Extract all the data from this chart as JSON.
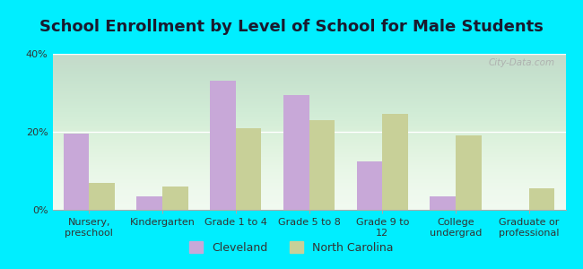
{
  "title": "School Enrollment by Level of School for Male Students",
  "categories": [
    "Nursery,\npreschool",
    "Kindergarten",
    "Grade 1 to 4",
    "Grade 5 to 8",
    "Grade 9 to\n12",
    "College\nundergrad",
    "Graduate or\nprofessional"
  ],
  "cleveland_values": [
    19.5,
    3.5,
    33.0,
    29.5,
    12.5,
    3.5,
    0
  ],
  "nc_values": [
    7.0,
    6.0,
    21.0,
    23.0,
    24.5,
    19.0,
    5.5
  ],
  "cleveland_color": "#c8a8d8",
  "nc_color": "#c8d098",
  "background_color": "#00eeff",
  "ylim": [
    0,
    40
  ],
  "yticks": [
    0,
    20,
    40
  ],
  "ytick_labels": [
    "0%",
    "20%",
    "40%"
  ],
  "bar_width": 0.35,
  "legend_labels": [
    "Cleveland",
    "North Carolina"
  ],
  "title_fontsize": 13,
  "tick_fontsize": 8,
  "legend_fontsize": 9,
  "watermark": "City-Data.com"
}
